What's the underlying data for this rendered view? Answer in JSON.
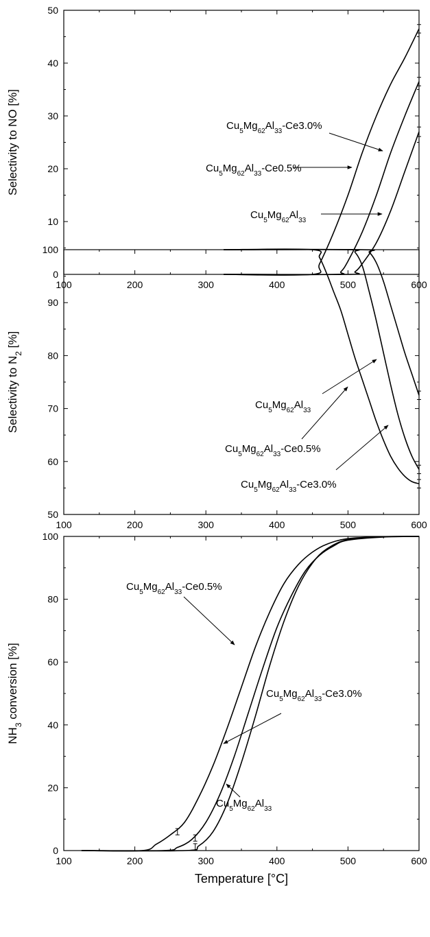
{
  "chart_data": [
    {
      "type": "line",
      "xlabel": "",
      "ylabel": [
        "Selectivity to NO [%]"
      ],
      "xlim": [
        100,
        600
      ],
      "ylim": [
        0,
        50
      ],
      "xticks": [
        "100",
        "200",
        "300",
        "400",
        "500",
        "600"
      ],
      "yticks": [
        "0",
        "10",
        "20",
        "30",
        "40",
        "50"
      ],
      "series": [
        {
          "name": "Cu5Mg62Al33-Ce3.0%",
          "x": [
            325,
            450,
            460,
            480,
            500,
            520,
            540,
            560,
            580,
            600
          ],
          "y": [
            0,
            0,
            2,
            8,
            15,
            23,
            30,
            36,
            41,
            46.5
          ],
          "error_at_600": 0.8
        },
        {
          "name": "Cu5Mg62Al33-Ce0.5%",
          "x": [
            325,
            480,
            490,
            500,
            520,
            540,
            560,
            580,
            600
          ],
          "y": [
            0,
            0,
            0.5,
            2.5,
            8,
            15,
            23,
            30,
            36.5
          ],
          "error_at_600": 0.8
        },
        {
          "name": "Cu5Mg62Al33",
          "x": [
            325,
            500,
            510,
            520,
            540,
            560,
            580,
            600
          ],
          "y": [
            0,
            0,
            0.5,
            2,
            6,
            12,
            19.5,
            27
          ],
          "error_at_600": 0.9
        }
      ],
      "annotations": [
        {
          "parts": [
            [
              "Cu",
              ""
            ],
            [
              "5",
              "sub"
            ],
            [
              "Mg",
              ""
            ],
            [
              "62",
              "sub"
            ],
            [
              "Al",
              ""
            ],
            [
              "33",
              "sub"
            ],
            [
              "-Ce3.0%",
              ""
            ]
          ]
        },
        {
          "parts": [
            [
              "Cu",
              ""
            ],
            [
              "5",
              "sub"
            ],
            [
              "Mg",
              ""
            ],
            [
              "62",
              "sub"
            ],
            [
              "Al",
              ""
            ],
            [
              "33",
              "sub"
            ],
            [
              "-Ce0.5%",
              ""
            ]
          ]
        },
        {
          "parts": [
            [
              "Cu",
              ""
            ],
            [
              "5",
              "sub"
            ],
            [
              "Mg",
              ""
            ],
            [
              "62",
              "sub"
            ],
            [
              "Al",
              ""
            ],
            [
              "33",
              "sub"
            ]
          ]
        }
      ]
    },
    {
      "type": "line",
      "xlabel": "",
      "ylabel": [
        "Selectivity to N",
        "2",
        " [%]"
      ],
      "xlim": [
        100,
        600
      ],
      "ylim": [
        50,
        100
      ],
      "xticks": [
        "100",
        "200",
        "300",
        "400",
        "500",
        "600"
      ],
      "yticks": [
        "50",
        "60",
        "70",
        "80",
        "90",
        "100"
      ],
      "series": [
        {
          "name": "Cu5Mg62Al33",
          "x": [
            325,
            520,
            530,
            540,
            550,
            560,
            570,
            580,
            590,
            600
          ],
          "y": [
            100,
            100,
            99.5,
            97.5,
            94,
            89.5,
            85,
            80.5,
            76.5,
            72.5
          ],
          "error_at_600": 0.8
        },
        {
          "name": "Cu5Mg62Al33-Ce0.5%",
          "x": [
            325,
            500,
            510,
            520,
            530,
            540,
            550,
            560,
            570,
            580,
            590,
            600
          ],
          "y": [
            100,
            100,
            99.5,
            97,
            92,
            86.5,
            80.5,
            74.5,
            69,
            64.5,
            61,
            58.5
          ],
          "error_at_600": 0.8
        },
        {
          "name": "Cu5Mg62Al33-Ce3.0%",
          "x": [
            325,
            450,
            460,
            470,
            480,
            490,
            500,
            510,
            520,
            530,
            540,
            550,
            560,
            570,
            580,
            590,
            600
          ],
          "y": [
            100,
            100,
            98.5,
            95.5,
            92,
            88.5,
            84,
            79.5,
            75.5,
            71.5,
            67.5,
            64,
            61,
            58.8,
            57.2,
            56.2,
            55.8
          ],
          "error_at_600": 0.8
        }
      ],
      "annotations": [
        {
          "parts": [
            [
              "Cu",
              ""
            ],
            [
              "5",
              "sub"
            ],
            [
              "Mg",
              ""
            ],
            [
              "62",
              "sub"
            ],
            [
              "Al",
              ""
            ],
            [
              "33",
              "sub"
            ]
          ]
        },
        {
          "parts": [
            [
              "Cu",
              ""
            ],
            [
              "5",
              "sub"
            ],
            [
              "Mg",
              ""
            ],
            [
              "62",
              "sub"
            ],
            [
              "Al",
              ""
            ],
            [
              "33",
              "sub"
            ],
            [
              "-Ce0.5%",
              ""
            ]
          ]
        },
        {
          "parts": [
            [
              "Cu",
              ""
            ],
            [
              "5",
              "sub"
            ],
            [
              "Mg",
              ""
            ],
            [
              "62",
              "sub"
            ],
            [
              "Al",
              ""
            ],
            [
              "33",
              "sub"
            ],
            [
              "-Ce3.0%",
              ""
            ]
          ]
        }
      ]
    },
    {
      "type": "line",
      "xlabel": "Temperature [°C]",
      "ylabel": [
        "NH",
        "3",
        " conversion [%]"
      ],
      "xlim": [
        100,
        600
      ],
      "ylim": [
        0,
        100
      ],
      "xticks": [
        "100",
        "200",
        "300",
        "400",
        "500",
        "600"
      ],
      "yticks": [
        "0",
        "20",
        "40",
        "60",
        "80",
        "100"
      ],
      "series": [
        {
          "name": "Cu5Mg62Al33-Ce0.5%",
          "x": [
            125,
            210,
            230,
            250,
            270,
            290,
            310,
            330,
            350,
            370,
            390,
            410,
            430,
            450,
            470,
            500,
            550,
            600
          ],
          "y": [
            0,
            0,
            2,
            5,
            9,
            17,
            27,
            39,
            52,
            65,
            76,
            85,
            91,
            95,
            97.5,
            99.3,
            99.9,
            100
          ],
          "error_at": [
            260,
            6
          ]
        },
        {
          "name": "Cu5Mg62Al33-Ce3.0%",
          "x": [
            125,
            240,
            260,
            280,
            300,
            320,
            340,
            360,
            380,
            400,
            420,
            440,
            460,
            480,
            500,
            550,
            600
          ],
          "y": [
            0,
            0,
            1,
            3.5,
            9,
            18,
            30,
            44,
            58,
            71,
            81,
            89,
            94,
            97,
            98.8,
            99.8,
            100
          ],
          "error_at": [
            285,
            4
          ]
        },
        {
          "name": "Cu5Mg62Al33",
          "x": [
            125,
            270,
            290,
            310,
            330,
            350,
            370,
            390,
            410,
            430,
            450,
            470,
            500,
            550,
            600
          ],
          "y": [
            0,
            0,
            1.5,
            6,
            15,
            28,
            43,
            59,
            73,
            84,
            91.5,
            96,
            99,
            99.9,
            100
          ],
          "error_at": [
            285,
            1.2
          ]
        }
      ],
      "annotations": [
        {
          "parts": [
            [
              "Cu",
              ""
            ],
            [
              "5",
              "sub"
            ],
            [
              "Mg",
              ""
            ],
            [
              "62",
              "sub"
            ],
            [
              "Al",
              ""
            ],
            [
              "33",
              "sub"
            ],
            [
              "-Ce0.5%",
              ""
            ]
          ]
        },
        {
          "parts": [
            [
              "Cu",
              ""
            ],
            [
              "5",
              "sub"
            ],
            [
              "Mg",
              ""
            ],
            [
              "62",
              "sub"
            ],
            [
              "Al",
              ""
            ],
            [
              "33",
              "sub"
            ],
            [
              "-Ce3.0%",
              ""
            ]
          ]
        },
        {
          "parts": [
            [
              "Cu",
              ""
            ],
            [
              "5",
              "sub"
            ],
            [
              "Mg",
              ""
            ],
            [
              "62",
              "sub"
            ],
            [
              "Al",
              ""
            ],
            [
              "33",
              "sub"
            ]
          ]
        }
      ]
    }
  ]
}
